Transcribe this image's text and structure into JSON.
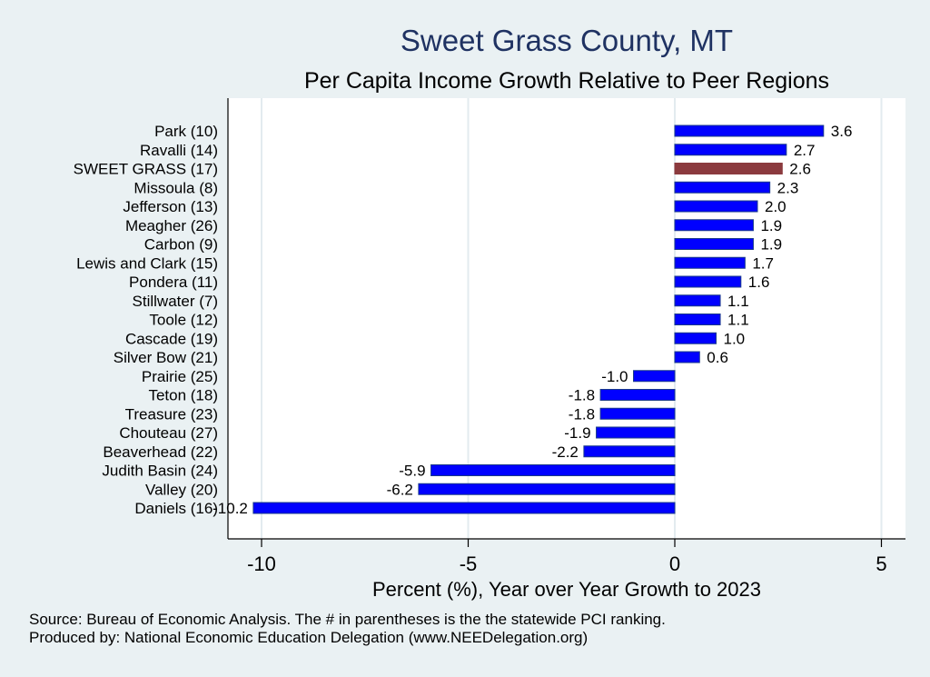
{
  "chart_data": {
    "type": "bar",
    "orientation": "horizontal",
    "title": "Sweet Grass County, MT",
    "subtitle": "Per Capita Income Growth Relative to Peer Regions",
    "xlabel": "Percent (%), Year over Year Growth to 2023",
    "ylabel": "",
    "xlim": [
      -10.8,
      5.6
    ],
    "xticks": [
      -10,
      -5,
      0,
      5
    ],
    "xtick_labels": [
      "-10",
      "-5",
      "0",
      "5"
    ],
    "grid": true,
    "categories": [
      "Park (10)",
      "Ravalli (14)",
      "SWEET GRASS (17)",
      "Missoula  (8)",
      "Jefferson (13)",
      "Meagher (26)",
      "Carbon  (9)",
      "Lewis and Clark (15)",
      "Pondera (11)",
      "Stillwater  (7)",
      "Toole (12)",
      "Cascade (19)",
      "Silver Bow (21)",
      "Prairie (25)",
      "Teton (18)",
      "Treasure (23)",
      "Chouteau (27)",
      "Beaverhead (22)",
      "Judith Basin (24)",
      "Valley (20)",
      "Daniels (16)"
    ],
    "values": [
      3.6,
      2.7,
      2.6,
      2.3,
      2.0,
      1.9,
      1.9,
      1.7,
      1.6,
      1.1,
      1.1,
      1.0,
      0.6,
      -1.0,
      -1.8,
      -1.8,
      -1.9,
      -2.2,
      -5.9,
      -6.2,
      -10.2
    ],
    "value_labels": [
      "3.6",
      "2.7",
      "2.6",
      "2.3",
      "2.0",
      "1.9",
      "1.9",
      "1.7",
      "1.6",
      "1.1",
      "1.1",
      "1.0",
      "0.6",
      "-1.0",
      "-1.8",
      "-1.8",
      "-1.9",
      "-2.2",
      "-5.9",
      "-6.2",
      "-10.2"
    ],
    "highlight": "SWEET GRASS (17)",
    "colors": {
      "bar": "#0000ff",
      "bar_outline": "#1a3a8a",
      "highlight": "#8b3a3e",
      "title": "#1f3262",
      "grid": "#e3ebef",
      "plot_bg": "#ffffff",
      "page_bg": "#eaf1f3"
    }
  },
  "notes": {
    "source": "Source: Bureau of Economic Analysis. The # in parentheses is the the statewide PCI ranking.",
    "produced_by": "Produced by: National Economic Education Delegation (www.NEEDelegation.org)"
  }
}
